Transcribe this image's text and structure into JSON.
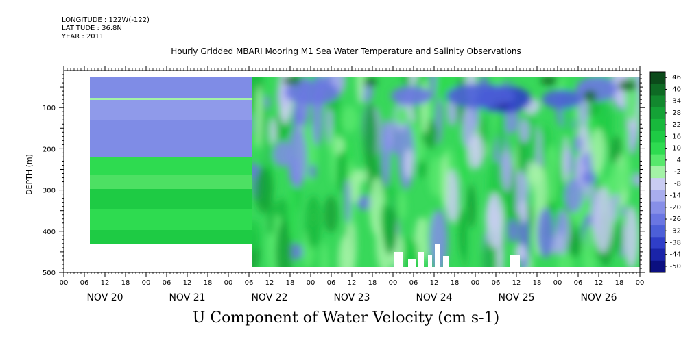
{
  "header": {
    "longitude": "LONGITUDE : 122W(-122)",
    "latitude": "LATITUDE : 36.8N",
    "year": "YEAR : 2011"
  },
  "title": "Hourly Gridded MBARI Mooring M1 Sea Water Temperature and Salinity Observations",
  "footer_title": "U Component of Water Velocity (cm s-1)",
  "chart_data": {
    "type": "heatmap",
    "title": "Hourly Gridded MBARI Mooring M1 Sea Water Temperature and Salinity Observations",
    "ylabel": "DEPTH (m)",
    "xlabel": "",
    "ylim": [
      500,
      10
    ],
    "y_ticks": [
      100,
      200,
      300,
      400,
      500
    ],
    "x_range_days": [
      "NOV 20 00",
      "NOV 27 06"
    ],
    "x_day_labels": [
      "NOV 20",
      "NOV 21",
      "NOV 22",
      "NOV 23",
      "NOV 24",
      "NOV 25",
      "NOV 26"
    ],
    "x_hour_labels": [
      "00",
      "06",
      "12",
      "18"
    ],
    "colorbar": {
      "labels": [
        "46",
        "40",
        "34",
        "28",
        "22",
        "16",
        "10",
        "4",
        "-2",
        "-8",
        "-14",
        "-20",
        "-26",
        "-32",
        "-38",
        "-44",
        "-50"
      ],
      "colors": [
        "#0b4a1a",
        "#0e6a24",
        "#12882e",
        "#14a236",
        "#18b83c",
        "#1ecb44",
        "#2edb50",
        "#58e86c",
        "#a3f2a6",
        "#c9ccf2",
        "#a8adee",
        "#878fe8",
        "#6a76e2",
        "#4c5fd8",
        "#2f3ec8",
        "#1a24a8",
        "#0b0f80"
      ]
    },
    "regions": [
      {
        "x0": "NOV 20 06",
        "x1": "NOV 22 06",
        "y0": 10,
        "y1": 70,
        "value": -14
      },
      {
        "x0": "NOV 20 06",
        "x1": "NOV 22 06",
        "y0": 70,
        "y1": 75,
        "value": 4
      },
      {
        "x0": "NOV 20 06",
        "x1": "NOV 22 06",
        "y0": 75,
        "y1": 220,
        "value": -14
      },
      {
        "x0": "NOV 20 06",
        "x1": "NOV 22 06",
        "y0": 220,
        "y1": 435,
        "value": 22
      },
      {
        "x0": "NOV 22 06",
        "x1": "NOV 27 03",
        "y0": 10,
        "y1": 485,
        "value": "mixed, -50 to 46"
      }
    ]
  }
}
